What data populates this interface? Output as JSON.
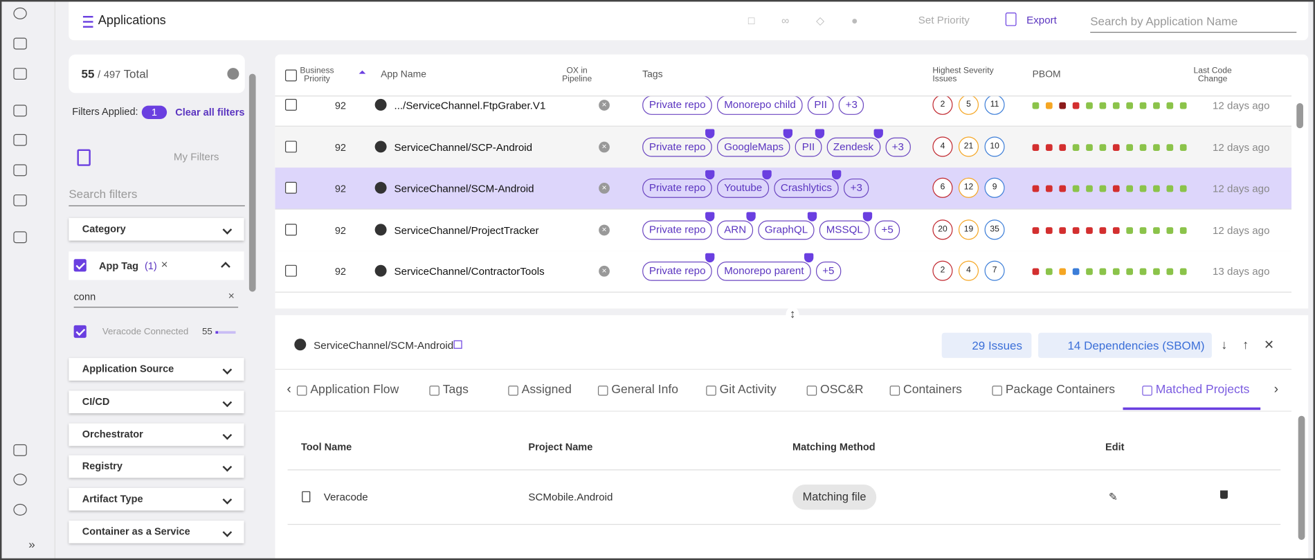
{
  "header": {
    "title": "Applications",
    "set_priority": "Set Priority",
    "export": "Export",
    "search": "Search by Application Name"
  },
  "filters": {
    "count": 55,
    "separator": "/",
    "total": 497,
    "total_label": "Total",
    "applied_label": "Filters Applied:",
    "applied_count": 1,
    "clear": "Clear all filters",
    "my_filters": "My Filters",
    "search": "Search filters",
    "sections_top": [
      "Category"
    ],
    "app_tag": {
      "label": "App Tag",
      "count": "(1)",
      "query": "conn",
      "option": "Veracode Connected",
      "option_count": 55
    },
    "sections": [
      "Application Source",
      "CI/CD",
      "Orchestrator",
      "Registry",
      "Artifact Type",
      "Container as a Service"
    ]
  },
  "table": {
    "columns": [
      "Business Priority",
      "App Name",
      "OX in Pipeline",
      "Tags",
      "Highest Severity Issues",
      "PBOM",
      "Last Code Change"
    ],
    "rows": [
      {
        "priority": 92,
        "name": ".../ServiceChannel.FtpGraber.V1",
        "tags": [
          "Private repo",
          "Monorepo child",
          "PII"
        ],
        "more": "+3",
        "issues": [
          2,
          5,
          11
        ],
        "pbom": [
          "#8bc34a",
          "#f5a623",
          "#8b1a1a",
          "#d32f2f",
          "#8bc34a",
          "#8bc34a",
          "#8bc34a",
          "#8bc34a",
          "#8bc34a",
          "#8bc34a",
          "#8bc34a",
          "#8bc34a"
        ],
        "last_change": "12 days ago"
      },
      {
        "priority": 92,
        "name": "ServiceChannel/SCP-Android",
        "tags": [
          "Private repo",
          "GoogleMaps",
          "PII",
          "Zendesk"
        ],
        "more": "+3",
        "issues": [
          4,
          21,
          10
        ],
        "pbom": [
          "#d32f2f",
          "#d32f2f",
          "#d32f2f",
          "#8bc34a",
          "#8bc34a",
          "#8bc34a",
          "#d32f2f",
          "#8bc34a",
          "#8bc34a",
          "#8bc34a",
          "#8bc34a",
          "#8bc34a"
        ],
        "last_change": "12 days ago"
      },
      {
        "priority": 92,
        "name": "ServiceChannel/SCM-Android",
        "tags": [
          "Private repo",
          "Youtube",
          "Crashlytics"
        ],
        "more": "+3",
        "issues": [
          6,
          12,
          9
        ],
        "pbom": [
          "#d32f2f",
          "#d32f2f",
          "#d32f2f",
          "#8bc34a",
          "#8bc34a",
          "#8bc34a",
          "#d32f2f",
          "#8bc34a",
          "#8bc34a",
          "#8bc34a",
          "#8bc34a",
          "#8bc34a"
        ],
        "last_change": "12 days ago",
        "selected": true
      },
      {
        "priority": 92,
        "name": "ServiceChannel/ProjectTracker",
        "tags": [
          "Private repo",
          "ARN",
          "GraphQL",
          "MSSQL"
        ],
        "more": "+5",
        "issues": [
          20,
          19,
          35
        ],
        "pbom": [
          "#d32f2f",
          "#d32f2f",
          "#d32f2f",
          "#d32f2f",
          "#d32f2f",
          "#d32f2f",
          "#d32f2f",
          "#8bc34a",
          "#8bc34a",
          "#8bc34a",
          "#8bc34a",
          "#8bc34a"
        ],
        "last_change": "12 days ago"
      },
      {
        "priority": 92,
        "name": "ServiceChannel/ContractorTools",
        "tags": [
          "Private repo",
          "Monorepo parent"
        ],
        "more": "+5",
        "issues": [
          2,
          4,
          7
        ],
        "pbom": [
          "#d32f2f",
          "#8bc34a",
          "#f5a623",
          "#3b7dd8",
          "#8bc34a",
          "#8bc34a",
          "#8bc34a",
          "#8bc34a",
          "#8bc34a",
          "#8bc34a",
          "#8bc34a",
          "#8bc34a"
        ],
        "last_change": "13 days ago"
      }
    ]
  },
  "detail": {
    "name": "ServiceChannel/SCM-Android",
    "issues": "29 Issues",
    "dependencies": "14 Dependencies (SBOM)",
    "tabs": [
      "Application Flow",
      "Tags",
      "Assigned",
      "General Info",
      "Git Activity",
      "OSC&R",
      "Containers",
      "Package Containers",
      "Matched Projects"
    ],
    "active_tab": 8,
    "columns": [
      "Tool Name",
      "Project Name",
      "Matching Method",
      "Edit"
    ],
    "row": {
      "tool": "Veracode",
      "project": "SCMobile.Android",
      "method": "Matching file"
    }
  }
}
